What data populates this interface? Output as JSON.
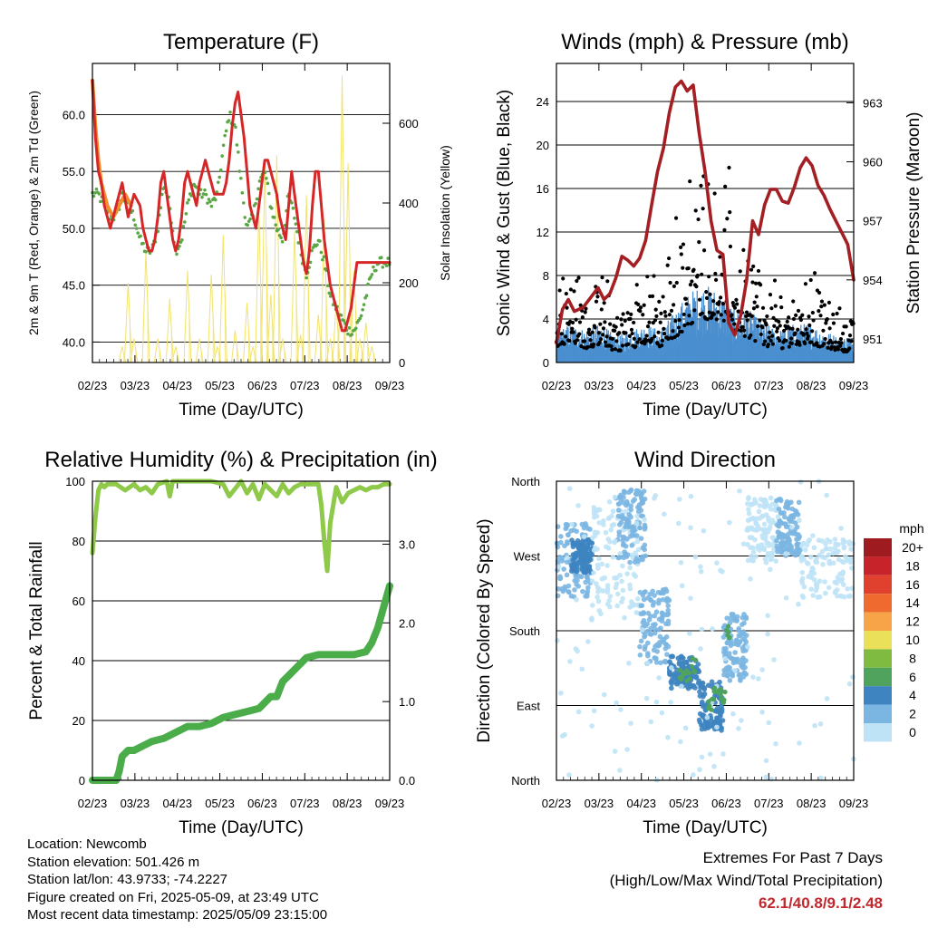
{
  "chart_data": [
    {
      "id": "temp",
      "type": "line",
      "title": "Temperature (F)",
      "xlabel": "Time (Day/UTC)",
      "ylabel": "2m & 9m T (Red, Orange) & 2m Td (Green)",
      "y2label": "Solar Insolation (Yellow)",
      "x_ticks": [
        "02/23",
        "03/23",
        "04/23",
        "05/23",
        "06/23",
        "07/23",
        "08/23",
        "09/23"
      ],
      "ylim": [
        38.2,
        64.5
      ],
      "y_ticks": [
        "40.0",
        "45.0",
        "50.0",
        "55.0",
        "60.0"
      ],
      "y2lim": [
        0,
        750
      ],
      "y2_ticks": [
        "0",
        "200",
        "400",
        "600"
      ],
      "grid": true,
      "series": [
        {
          "color": "#d62728",
          "x": [
            0,
            1,
            2,
            3,
            4,
            6,
            8,
            10,
            12,
            14,
            16,
            17,
            18,
            19,
            20,
            21,
            22,
            23,
            24,
            25,
            26,
            27,
            28,
            29,
            30,
            31,
            32,
            33,
            34,
            35,
            36,
            37,
            38,
            39,
            40,
            41,
            42,
            43,
            44,
            45,
            46,
            47,
            48,
            49,
            50,
            51,
            52,
            53,
            54,
            55,
            56,
            57,
            58,
            59,
            60,
            61,
            62,
            63,
            64,
            65,
            66,
            67,
            68,
            69,
            70,
            71,
            72,
            73,
            74,
            75,
            76,
            77,
            78,
            79,
            80,
            81,
            82,
            83,
            84,
            85,
            86,
            87,
            88,
            89,
            90,
            91,
            92,
            93,
            94,
            95,
            96,
            97,
            98,
            99,
            100
          ],
          "values": [
            63,
            58,
            55,
            54,
            52,
            50,
            52,
            54,
            51,
            53,
            52,
            50,
            49,
            48,
            48,
            49,
            51,
            54,
            55,
            53,
            51,
            49,
            48,
            49,
            51,
            54,
            55,
            54,
            53,
            52,
            54,
            55,
            56,
            55,
            54,
            53,
            53,
            53,
            53,
            54,
            56,
            59,
            61,
            62,
            60,
            58,
            55,
            52,
            51,
            50,
            52,
            54,
            56,
            56,
            55,
            54,
            53,
            51,
            50,
            49,
            52,
            55,
            53,
            51,
            49,
            47,
            46,
            48,
            52,
            55,
            55,
            52,
            49,
            47,
            45,
            44,
            43,
            42,
            41,
            41,
            42,
            43,
            45,
            47,
            47,
            47,
            47,
            47,
            47,
            47,
            47,
            47,
            47,
            47,
            47
          ]
        },
        {
          "color": "#f28e2b",
          "x": [
            0,
            1,
            2,
            3,
            5,
            7,
            9,
            11,
            13
          ],
          "values": [
            63,
            59,
            56,
            54,
            52,
            51,
            52,
            53,
            52
          ]
        },
        {
          "color": "#59a845",
          "x": [
            0,
            2,
            4,
            6,
            8,
            10,
            12,
            14,
            16,
            18,
            20,
            22,
            24,
            26,
            28,
            30,
            32,
            34,
            36,
            38,
            40,
            42,
            44,
            46,
            48,
            50,
            52,
            54,
            56,
            58,
            60,
            62,
            64,
            66,
            68,
            70,
            72,
            74,
            76,
            78,
            80,
            82,
            84,
            86,
            88,
            90,
            92,
            94,
            96,
            98,
            100
          ],
          "values": [
            53,
            53,
            52,
            51,
            51,
            53,
            52,
            51,
            49,
            48,
            48,
            50,
            54,
            52,
            48,
            49,
            52,
            54,
            53,
            53,
            52,
            53,
            57,
            60,
            59,
            54,
            50,
            51,
            54,
            55,
            52,
            50,
            49,
            53,
            51,
            48,
            46,
            48,
            49,
            47,
            44,
            43,
            42,
            41,
            41,
            42,
            44,
            46,
            47,
            47,
            47
          ]
        },
        {
          "color": "#f2e36b",
          "x": [
            10,
            12,
            14,
            18,
            22,
            26,
            28,
            32,
            36,
            40,
            42,
            44,
            48,
            52,
            54,
            56,
            58,
            60,
            62,
            64,
            68,
            70,
            72,
            76,
            78,
            80,
            82,
            84,
            86,
            88,
            90,
            92,
            94
          ],
          "values": [
            40,
            200,
            60,
            280,
            60,
            160,
            40,
            230,
            60,
            220,
            40,
            320,
            80,
            150,
            40,
            380,
            500,
            170,
            520,
            60,
            330,
            70,
            420,
            120,
            360,
            60,
            150,
            720,
            500,
            230,
            60,
            100,
            40
          ]
        }
      ]
    },
    {
      "id": "wind",
      "type": "scatter",
      "title": "Winds (mph) & Pressure (mb)",
      "xlabel": "Time (Day/UTC)",
      "ylabel": "Sonic Wind & Gust (Blue, Black)",
      "y2label": "Station Pressure (Maroon)",
      "x_ticks": [
        "02/23",
        "03/23",
        "04/23",
        "05/23",
        "06/23",
        "07/23",
        "08/23",
        "09/23"
      ],
      "ylim": [
        0,
        27.5
      ],
      "y_ticks": [
        "0",
        "4",
        "8",
        "12",
        "16",
        "20",
        "24"
      ],
      "y2lim": [
        949.8,
        965
      ],
      "y2_ticks": [
        "951",
        "954",
        "957",
        "960",
        "963"
      ],
      "grid": true,
      "gust_envelope": {
        "x": [
          0,
          5,
          10,
          15,
          20,
          25,
          30,
          35,
          40,
          45,
          50,
          55,
          60,
          65,
          70,
          75,
          80,
          85,
          90,
          95,
          100
        ],
        "values": [
          6,
          7,
          5,
          6,
          4,
          5,
          7,
          5,
          9,
          14,
          16,
          15,
          10,
          9,
          6,
          5,
          6,
          7,
          5,
          4,
          4
        ]
      },
      "wind_envelope": {
        "x": [
          0,
          5,
          10,
          15,
          20,
          25,
          30,
          35,
          40,
          45,
          50,
          55,
          60,
          65,
          70,
          75,
          80,
          85,
          90,
          95,
          100
        ],
        "values": [
          2.5,
          3,
          2.5,
          3,
          2,
          2.5,
          3,
          2.5,
          4,
          5.5,
          6,
          5.5,
          4,
          4,
          3,
          2.5,
          3,
          3,
          2.5,
          2,
          2
        ]
      },
      "pressure": {
        "color": "#a31f24",
        "x": [
          0,
          2,
          4,
          6,
          9,
          12,
          14,
          16,
          18,
          20,
          22,
          24,
          26,
          28,
          30,
          32,
          34,
          36,
          38,
          40,
          42,
          44,
          46,
          48,
          50,
          52,
          54,
          56,
          58,
          60,
          62,
          64,
          66,
          68,
          70,
          72,
          74,
          76,
          78,
          80,
          82,
          84,
          86,
          88,
          90,
          92,
          94,
          96,
          98,
          100
        ],
        "values": [
          950.8,
          952.5,
          953,
          952.4,
          952.6,
          953.2,
          953.6,
          953.0,
          953.3,
          954.1,
          955.2,
          955.0,
          954.7,
          955.1,
          956.0,
          957.8,
          959.5,
          960.7,
          962.5,
          963.8,
          964.1,
          963.6,
          963.9,
          961.5,
          959.5,
          957.0,
          955.5,
          955.3,
          951.8,
          951.2,
          952.2,
          954.0,
          957.0,
          956.3,
          957.8,
          958.6,
          958.6,
          958.0,
          957.9,
          958.7,
          959.7,
          960.2,
          959.8,
          958.8,
          958.3,
          957.6,
          957.0,
          956.4,
          955.8,
          954.0
        ]
      }
    },
    {
      "id": "rh",
      "type": "line",
      "title": "Relative Humidity (%) & Precipitation (in)",
      "xlabel": "Time (Day/UTC)",
      "ylabel": "Percent & Total Rainfall",
      "x_ticks": [
        "02/23",
        "03/23",
        "04/23",
        "05/23",
        "06/23",
        "07/23",
        "08/23",
        "09/23"
      ],
      "ylim": [
        0,
        100
      ],
      "y_ticks": [
        "0",
        "20",
        "40",
        "60",
        "80",
        "100"
      ],
      "y2lim": [
        0,
        3.8
      ],
      "y2_ticks": [
        "0.0",
        "1.0",
        "2.0",
        "3.0"
      ],
      "grid": true,
      "series": [
        {
          "color": "#8fc94a",
          "x": [
            0,
            1,
            2,
            3,
            4,
            5,
            8,
            11,
            14,
            16,
            18,
            20,
            22,
            25,
            26,
            27,
            30,
            35,
            40,
            44,
            46,
            50,
            52,
            54,
            56,
            58,
            60,
            62,
            64,
            66,
            68,
            70,
            72,
            74,
            76,
            77,
            78,
            79,
            80,
            82,
            84,
            86,
            88,
            90,
            92,
            94,
            96,
            98,
            100
          ],
          "values": [
            76,
            88,
            97,
            99,
            98,
            99,
            99,
            97,
            99,
            97,
            98,
            96,
            99,
            100,
            95,
            100,
            100,
            100,
            100,
            99,
            95,
            100,
            96,
            99,
            94,
            99,
            97,
            95,
            99,
            96,
            98,
            99,
            99,
            99,
            99,
            92,
            80,
            70,
            86,
            98,
            93,
            96,
            97,
            98,
            97,
            98,
            98,
            99,
            99
          ]
        },
        {
          "color": "#4aad4a",
          "x": [
            0,
            5,
            8,
            9,
            10,
            12,
            14,
            16,
            20,
            24,
            28,
            32,
            36,
            40,
            44,
            48,
            52,
            56,
            60,
            62,
            64,
            66,
            68,
            72,
            76,
            80,
            84,
            88,
            92,
            94,
            96,
            98,
            100
          ],
          "values": [
            0,
            0,
            0,
            3,
            8,
            10,
            10,
            11,
            13,
            14,
            16,
            18,
            18,
            19,
            21,
            22,
            23,
            24,
            28,
            28,
            33,
            35,
            37,
            41,
            42,
            42,
            42,
            42,
            43,
            46,
            51,
            58,
            65
          ]
        }
      ]
    },
    {
      "id": "dir",
      "type": "scatter",
      "title": "Wind Direction",
      "xlabel": "Time (Day/UTC)",
      "ylabel": "Direction (Colored By Speed)",
      "x_ticks": [
        "02/23",
        "03/23",
        "04/23",
        "05/23",
        "06/23",
        "07/23",
        "08/23",
        "09/23"
      ],
      "y_ticks": [
        "North",
        "East",
        "South",
        "West",
        "North"
      ],
      "ylim": [
        0,
        360
      ],
      "grid": true,
      "legend": {
        "title": "mph",
        "labels": [
          "20+",
          "18",
          "16",
          "14",
          "12",
          "10",
          "8",
          "6",
          "4",
          "2",
          "0"
        ],
        "colors": [
          "#9e1b1f",
          "#c6232a",
          "#e0402e",
          "#ef6a2f",
          "#f7a448",
          "#ebe05a",
          "#7fbb41",
          "#4fa35c",
          "#3d84c0",
          "#7bb6e2",
          "#bfe3f6"
        ]
      },
      "clusters": [
        {
          "x": [
            0,
            12
          ],
          "y": [
            220,
            310
          ],
          "color": "#7bb6e2"
        },
        {
          "x": [
            5,
            12
          ],
          "y": [
            250,
            290
          ],
          "color": "#3d84c0"
        },
        {
          "x": [
            12,
            28
          ],
          "y": [
            200,
            330
          ],
          "color": "#bfe3f6"
        },
        {
          "x": [
            20,
            30
          ],
          "y": [
            260,
            350
          ],
          "color": "#7bb6e2"
        },
        {
          "x": [
            28,
            38
          ],
          "y": [
            140,
            230
          ],
          "color": "#7bb6e2"
        },
        {
          "x": [
            38,
            48
          ],
          "y": [
            110,
            150
          ],
          "color": "#3d84c0"
        },
        {
          "x": [
            48,
            56
          ],
          "y": [
            60,
            120
          ],
          "color": "#3d84c0"
        },
        {
          "x": [
            56,
            64
          ],
          "y": [
            120,
            200
          ],
          "color": "#7bb6e2"
        },
        {
          "x": [
            64,
            74
          ],
          "y": [
            260,
            340
          ],
          "color": "#bfe3f6"
        },
        {
          "x": [
            74,
            82
          ],
          "y": [
            270,
            340
          ],
          "color": "#7bb6e2"
        },
        {
          "x": [
            82,
            100
          ],
          "y": [
            220,
            290
          ],
          "color": "#bfe3f6"
        },
        {
          "x": [
            0,
            100
          ],
          "y": [
            0,
            360
          ],
          "color": "#bfe3f6"
        }
      ],
      "highlights": {
        "x": [
          42,
          44,
          46,
          52,
          54,
          56,
          58
        ],
        "y": [
          130,
          128,
          140,
          90,
          110,
          100,
          180
        ],
        "color": "#4fa35c"
      }
    }
  ],
  "info": {
    "location": "Location: Newcomb",
    "elevation": "Station elevation: 501.426 m",
    "latlon": "Station lat/lon: 43.9733; -74.2227",
    "created": "Figure created on Fri, 2025-05-09, at 23:49 UTC",
    "recent": "Most recent data timestamp: 2025/05/09 23:15:00"
  },
  "extremes": {
    "title": "Extremes For Past 7 Days",
    "subtitle": "(High/Low/Max Wind/Total Precipitation)",
    "value": "62.1/40.8/9.1/2.48"
  }
}
